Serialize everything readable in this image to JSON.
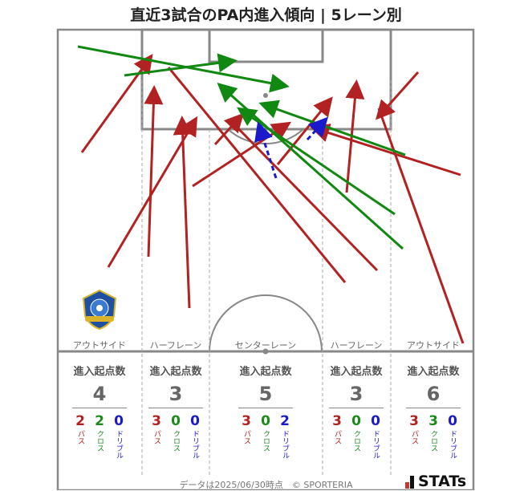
{
  "title": "直近3試合のPA内進入傾向 | 5レーン別",
  "colors": {
    "pass": "#b22222",
    "cross": "#118811",
    "dribble": "#1a1acc",
    "line": "#888888"
  },
  "lanes": [
    {
      "label": "アウトサイド",
      "head": "進入起点数",
      "total": "4",
      "pass": "2",
      "cross": "2",
      "dribble": "0"
    },
    {
      "label": "ハーフレーン",
      "head": "進入起点数",
      "total": "3",
      "pass": "3",
      "cross": "0",
      "dribble": "0"
    },
    {
      "label": "センターレーン",
      "head": "進入起点数",
      "total": "5",
      "pass": "3",
      "cross": "0",
      "dribble": "2"
    },
    {
      "label": "ハーフレーン",
      "head": "進入起点数",
      "total": "3",
      "pass": "3",
      "cross": "0",
      "dribble": "0"
    },
    {
      "label": "アウトサイド",
      "head": "進入起点数",
      "total": "6",
      "pass": "3",
      "cross": "3",
      "dribble": "0"
    }
  ],
  "legend": {
    "pass": "パス",
    "cross": "クロス",
    "dribble": "ドリブル"
  },
  "footer": "データは2025/06/30時点　© SPORTERIA",
  "brand": "STATs",
  "crest_icon": "team-crest-icon"
}
